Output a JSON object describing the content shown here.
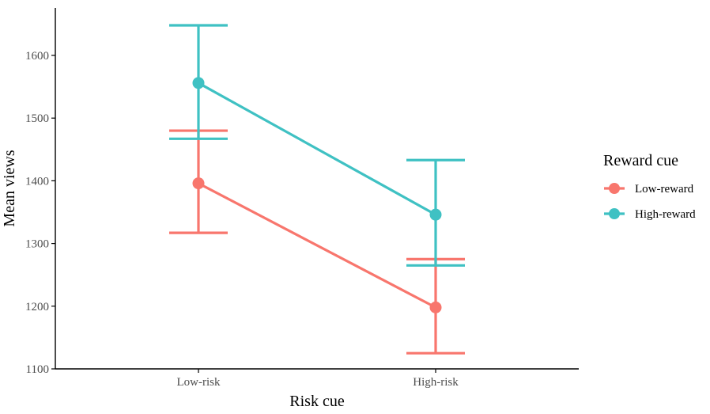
{
  "chart_data": {
    "type": "line",
    "categories": [
      "Low-risk",
      "High-risk"
    ],
    "xlabel": "Risk cue",
    "ylabel": "Mean views",
    "ylim": [
      1100,
      1650
    ],
    "yticks": [
      1100,
      1200,
      1300,
      1400,
      1500,
      1600
    ],
    "legend": {
      "title": "Reward cue",
      "position": "right"
    },
    "series": [
      {
        "name": "Low-reward",
        "color": "#f8766d",
        "values": [
          1396,
          1198
        ],
        "error_low": [
          1317,
          1125
        ],
        "error_high": [
          1480,
          1275
        ]
      },
      {
        "name": "High-reward",
        "color": "#3fc1c3",
        "values": [
          1556,
          1346
        ],
        "error_low": [
          1467,
          1265
        ],
        "error_high": [
          1648,
          1433
        ]
      }
    ],
    "grid": false
  }
}
